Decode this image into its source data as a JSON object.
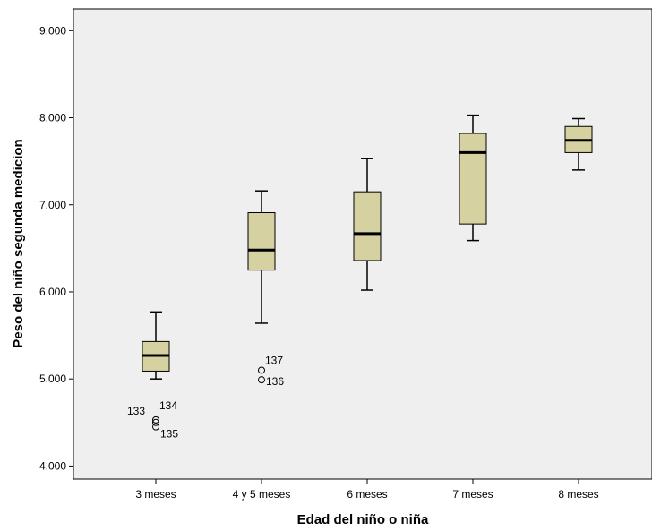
{
  "chart_data": {
    "type": "boxplot",
    "xlabel": "Edad del niño o niña",
    "ylabel": "Peso del niño segunda medicion",
    "ylim": [
      3850,
      9250
    ],
    "yticks": [
      4000,
      5000,
      6000,
      7000,
      8000,
      9000
    ],
    "ytick_labels": [
      "4.000",
      "5.000",
      "6.000",
      "7.000",
      "8.000",
      "9.000"
    ],
    "grid": false,
    "colors": {
      "plot_bg": "#efefef",
      "box_fill": "#d6d1a0",
      "stroke": "#000000"
    },
    "categories": [
      "3 meses",
      "4 y 5 meses",
      "6 meses",
      "7 meses",
      "8 meses"
    ],
    "boxes": [
      {
        "whisker_low": 5000,
        "q1": 5090,
        "median": 5270,
        "q3": 5430,
        "whisker_high": 5770
      },
      {
        "whisker_low": 5640,
        "q1": 6250,
        "median": 6480,
        "q3": 6910,
        "whisker_high": 7160
      },
      {
        "whisker_low": 6020,
        "q1": 6360,
        "median": 6670,
        "q3": 7150,
        "whisker_high": 7530
      },
      {
        "whisker_low": 6590,
        "q1": 6780,
        "median": 7600,
        "q3": 7820,
        "whisker_high": 8030
      },
      {
        "whisker_low": 7400,
        "q1": 7600,
        "median": 7740,
        "q3": 7900,
        "whisker_high": 7990
      }
    ],
    "outliers": [
      {
        "category": 0,
        "value": 4530,
        "label": "133"
      },
      {
        "category": 0,
        "value": 4500,
        "label": "134"
      },
      {
        "category": 0,
        "value": 4450,
        "label": "135"
      },
      {
        "category": 1,
        "value": 4990,
        "label": "136"
      },
      {
        "category": 1,
        "value": 5100,
        "label": "137"
      }
    ]
  }
}
